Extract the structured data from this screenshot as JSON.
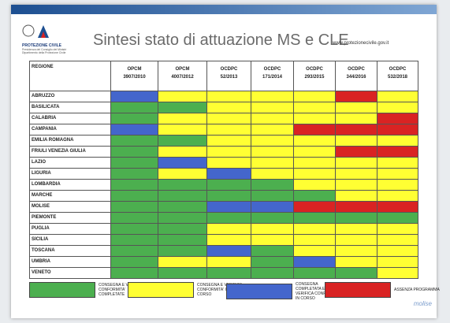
{
  "logo": {
    "name": "PROTEZIONE CIVILE",
    "subtitle": "Presidenza del Consiglio dei Ministri Dipartimento della Protezione Civile"
  },
  "header": {
    "title": "Sintesi stato di attuazione MS e CLE",
    "url": "www.protezionecivile.gov.it"
  },
  "colors": {
    "green": "#4caf4f",
    "yellow": "#ffff33",
    "blue": "#4466cc",
    "red": "#d92323"
  },
  "table": {
    "region_header": "REGIONE",
    "columns": [
      {
        "kind": "OPCM",
        "number": "3907/2010"
      },
      {
        "kind": "OPCM",
        "number": "4007/2012"
      },
      {
        "kind": "OCDPC",
        "number": "52/2013"
      },
      {
        "kind": "OCDPC",
        "number": "171/2014"
      },
      {
        "kind": "OCDPC",
        "number": "293/2015"
      },
      {
        "kind": "OCDPC",
        "number": "344/2016"
      },
      {
        "kind": "OCDPC",
        "number": "532/2018"
      }
    ],
    "rows": [
      {
        "region": "ABRUZZO",
        "status": [
          "blue",
          "yellow",
          "yellow",
          "yellow",
          "yellow",
          "red",
          "yellow"
        ]
      },
      {
        "region": "BASILICATA",
        "status": [
          "green",
          "green",
          "yellow",
          "yellow",
          "yellow",
          "yellow",
          "yellow"
        ]
      },
      {
        "region": "CALABRIA",
        "status": [
          "green",
          "yellow",
          "yellow",
          "yellow",
          "yellow",
          "yellow",
          "red"
        ]
      },
      {
        "region": "CAMPANIA",
        "status": [
          "blue",
          "yellow",
          "yellow",
          "yellow",
          "red",
          "red",
          "red"
        ]
      },
      {
        "region": "EMILIA ROMAGNA",
        "status": [
          "green",
          "green",
          "yellow",
          "yellow",
          "yellow",
          "yellow",
          "yellow"
        ]
      },
      {
        "region": "FRIULI VENEZIA GIULIA",
        "status": [
          "green",
          "yellow",
          "yellow",
          "yellow",
          "yellow",
          "red",
          "red"
        ]
      },
      {
        "region": "LAZIO",
        "status": [
          "green",
          "blue",
          "yellow",
          "yellow",
          "yellow",
          "yellow",
          "yellow"
        ]
      },
      {
        "region": "LIGURIA",
        "status": [
          "green",
          "yellow",
          "blue",
          "yellow",
          "yellow",
          "yellow",
          "yellow"
        ]
      },
      {
        "region": "LOMBARDIA",
        "status": [
          "green",
          "green",
          "green",
          "green",
          "yellow",
          "yellow",
          "yellow"
        ]
      },
      {
        "region": "MARCHE",
        "status": [
          "green",
          "green",
          "green",
          "green",
          "green",
          "yellow",
          "yellow"
        ]
      },
      {
        "region": "MOLISE",
        "status": [
          "green",
          "green",
          "blue",
          "blue",
          "red",
          "red",
          "red"
        ]
      },
      {
        "region": "PIEMONTE",
        "status": [
          "green",
          "green",
          "green",
          "green",
          "green",
          "green",
          "green"
        ]
      },
      {
        "region": "PUGLIA",
        "status": [
          "green",
          "green",
          "yellow",
          "yellow",
          "yellow",
          "yellow",
          "yellow"
        ]
      },
      {
        "region": "SICILIA",
        "status": [
          "green",
          "green",
          "yellow",
          "yellow",
          "yellow",
          "yellow",
          "yellow"
        ]
      },
      {
        "region": "TOSCANA",
        "status": [
          "green",
          "green",
          "blue",
          "green",
          "yellow",
          "yellow",
          "yellow"
        ]
      },
      {
        "region": "UMBRIA",
        "status": [
          "green",
          "yellow",
          "yellow",
          "green",
          "blue",
          "yellow",
          "yellow"
        ]
      },
      {
        "region": "VENETO",
        "status": [
          "green",
          "green",
          "green",
          "green",
          "green",
          "green",
          "yellow"
        ]
      }
    ]
  },
  "legend": [
    {
      "color": "green",
      "label": "CONSEGNA E VERIFICA CONFORMITA' COMPLETATE"
    },
    {
      "color": "yellow",
      "label": "CONSEGNA E VERIFICA CONFORMITA' IN CORSO"
    },
    {
      "color": "blue",
      "label": "CONSEGNA COMPLETATA E VERIFICA CONFORMITA' IN CORSO"
    },
    {
      "color": "red",
      "label": "ASSENZA PROGRAMMA"
    }
  ],
  "watermark": "molise"
}
